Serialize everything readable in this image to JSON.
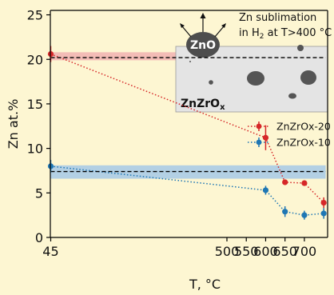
{
  "chart_data": {
    "type": "line",
    "xlabel": "T, °C",
    "ylabel": "Zn at.%",
    "xlim": [
      44,
      760
    ],
    "ylim": [
      0,
      25.5
    ],
    "xticks": [
      45,
      500,
      550,
      600,
      650,
      700
    ],
    "yticks": [
      0,
      5,
      10,
      15,
      20,
      25
    ],
    "grid": false,
    "legend_position": "right",
    "colors": {
      "background": "#fdf6d2",
      "red": "#d62728",
      "blue": "#1f77b4",
      "red_band": "#f1b1b1",
      "blue_band": "#a6c9e8",
      "inset_fill": "#e4e4e4",
      "dark_particle": "#555555"
    },
    "series": [
      {
        "name": "ZnZrOx-20",
        "color": "#d62728",
        "x": [
          45,
          600,
          650,
          700,
          750
        ],
        "y": [
          20.6,
          11.2,
          6.2,
          6.1,
          3.9
        ],
        "yerr": [
          0.9,
          1.4,
          0.3,
          0.3,
          0.6
        ],
        "band": [
          19.9,
          20.8
        ],
        "band_mean": 20.2
      },
      {
        "name": "ZnZrOx-10",
        "color": "#1f77b4",
        "x": [
          45,
          600,
          650,
          700,
          750
        ],
        "y": [
          8.0,
          5.3,
          2.9,
          2.5,
          2.7
        ],
        "yerr": [
          0.7,
          0.5,
          0.6,
          0.5,
          0.6
        ],
        "band": [
          6.6,
          8.1
        ],
        "band_mean": 7.4
      }
    ],
    "annotations": {
      "inset_label": "ZnZrO",
      "inset_label_subscript": "x",
      "oxide_label": "ZnO",
      "sublimation_line1": "Zn sublimation",
      "sublimation_line2_prefix": "in H",
      "sublimation_line2_subscript": "2",
      "sublimation_line2_suffix": " at T>400 °C"
    }
  }
}
